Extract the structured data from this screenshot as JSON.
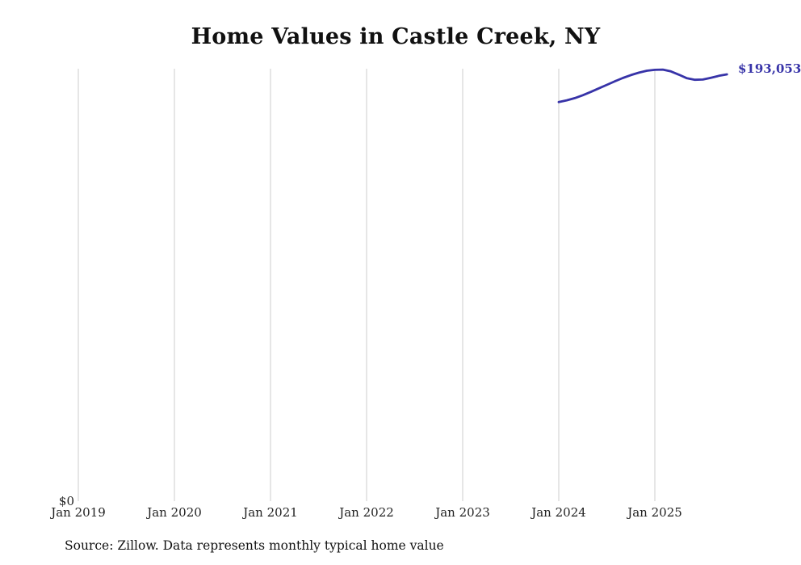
{
  "title": "Home Values in Castle Creek, NY",
  "source_note": "Source: Zillow. Data represents monthly typical home value",
  "chart_data": {
    "type": "line",
    "title": "Home Values in Castle Creek, NY",
    "xlabel": "",
    "ylabel": "",
    "x_tick_labels": [
      "Jan 2019",
      "Jan 2020",
      "Jan 2021",
      "Jan 2022",
      "Jan 2023",
      "Jan 2024",
      "Jan 2025"
    ],
    "y_zero_label": "$0",
    "end_label": "$193,053",
    "line_color": "#3733a8",
    "grid_color": "#cccccc",
    "grid": true,
    "legend": false,
    "ylim": [
      0,
      195600
    ],
    "x_start": "Jan 2019",
    "months_per_tick": 12,
    "series": [
      {
        "name": "Monthly typical home value",
        "points": [
          {
            "month": "Jan 2024",
            "value": 180500
          },
          {
            "month": "Feb 2024",
            "value": 181300
          },
          {
            "month": "Mar 2024",
            "value": 182300
          },
          {
            "month": "Apr 2024",
            "value": 183600
          },
          {
            "month": "May 2024",
            "value": 185100
          },
          {
            "month": "Jun 2024",
            "value": 186700
          },
          {
            "month": "Jul 2024",
            "value": 188300
          },
          {
            "month": "Aug 2024",
            "value": 189900
          },
          {
            "month": "Sep 2024",
            "value": 191400
          },
          {
            "month": "Oct 2024",
            "value": 192700
          },
          {
            "month": "Nov 2024",
            "value": 193800
          },
          {
            "month": "Dec 2024",
            "value": 194700
          },
          {
            "month": "Jan 2025",
            "value": 195100
          },
          {
            "month": "Feb 2025",
            "value": 195200
          },
          {
            "month": "Mar 2025",
            "value": 194400
          },
          {
            "month": "Apr 2025",
            "value": 192900
          },
          {
            "month": "May 2025",
            "value": 191300
          },
          {
            "month": "Jun 2025",
            "value": 190600
          },
          {
            "month": "Jul 2025",
            "value": 190700
          },
          {
            "month": "Aug 2025",
            "value": 191500
          },
          {
            "month": "Sep 2025",
            "value": 192400
          },
          {
            "month": "Oct 2025",
            "value": 193053
          }
        ]
      }
    ]
  }
}
